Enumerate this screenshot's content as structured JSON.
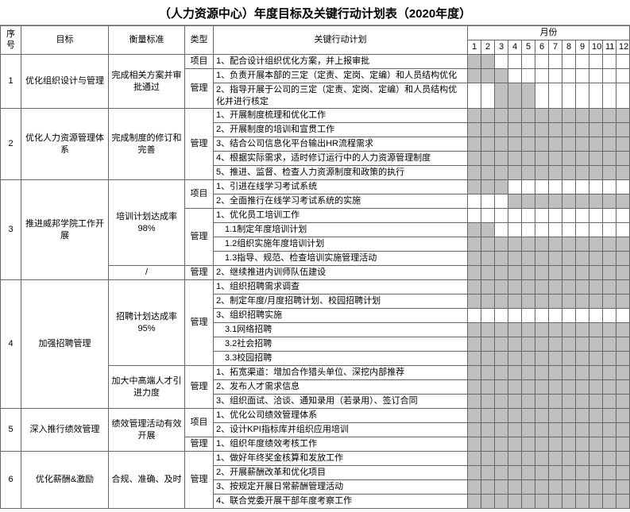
{
  "title": "（人力资源中心）年度目标及关键行动计划表（2020年度）",
  "headers": {
    "seq": "序号",
    "goal": "目标",
    "measure": "衡量标准",
    "type": "类型",
    "plan": "关键行动计划",
    "months": "月份"
  },
  "month_labels": [
    "1",
    "2",
    "3",
    "4",
    "5",
    "6",
    "7",
    "8",
    "9",
    "10",
    "11",
    "12"
  ],
  "goals": [
    {
      "seq": "1",
      "goal": "优化组织设计与管理",
      "measure": "完成相关方案并审批通过",
      "rows": [
        {
          "type": "项目",
          "plan": "1、配合设计组织优化方案，并上报审批",
          "g": [
            1,
            1,
            0,
            0,
            0,
            0,
            0,
            0,
            0,
            0,
            0,
            0
          ]
        },
        {
          "type": "管理",
          "plan": "1、负责开展本部的三定（定责、定岗、定编）和人员结构优化",
          "g": [
            1,
            1,
            1,
            0,
            0,
            0,
            0,
            0,
            0,
            0,
            0,
            0
          ]
        },
        {
          "type": "",
          "plan": "2、指导开展于公司的三定（定责、定岗、定编）和人员结构优化并进行核定",
          "g": [
            0,
            0,
            1,
            1,
            1,
            0,
            0,
            0,
            0,
            0,
            0,
            0
          ]
        }
      ]
    },
    {
      "seq": "2",
      "goal": "优化人力资源管理体系",
      "measure": "完成制度的修订和完善",
      "rows": [
        {
          "type": "管理",
          "plan": "1、开展制度梳理和优化工作",
          "g": [
            1,
            1,
            1,
            1,
            1,
            1,
            1,
            1,
            1,
            1,
            1,
            1
          ]
        },
        {
          "type": "",
          "plan": "2、开展制度的培训和宣贯工作",
          "g": [
            1,
            1,
            1,
            1,
            1,
            1,
            1,
            1,
            1,
            1,
            1,
            1
          ]
        },
        {
          "type": "",
          "plan": "3、结合公司信息化平台输出HR流程需求",
          "g": [
            1,
            1,
            1,
            1,
            1,
            1,
            1,
            1,
            1,
            1,
            1,
            1
          ]
        },
        {
          "type": "",
          "plan": "4、根据实际需求，适时修订运行中的人力资源管理制度",
          "g": [
            1,
            1,
            1,
            1,
            1,
            1,
            1,
            1,
            1,
            1,
            1,
            1
          ]
        },
        {
          "type": "",
          "plan": "5、推进、监督、检查人力资源制度和政策的执行",
          "g": [
            1,
            1,
            1,
            1,
            1,
            1,
            1,
            1,
            1,
            1,
            1,
            1
          ]
        }
      ]
    },
    {
      "seq": "3",
      "goal": "推进威邦学院工作开展",
      "measure": "培训计划达成率98%",
      "measure2": "/",
      "rows": [
        {
          "type": "项目",
          "plan": "1、引进在线学习考试系统",
          "g": [
            1,
            1,
            1,
            0,
            0,
            0,
            0,
            0,
            0,
            0,
            0,
            0
          ]
        },
        {
          "type": "",
          "plan": "2、全面推行在线学习考试系统的实施",
          "g": [
            0,
            0,
            0,
            1,
            1,
            1,
            1,
            1,
            1,
            1,
            1,
            1
          ]
        },
        {
          "type": "管理",
          "plan": "1、优化员工培训工作",
          "g": [
            0,
            0,
            0,
            0,
            0,
            0,
            0,
            0,
            0,
            0,
            0,
            0
          ]
        },
        {
          "type": "",
          "sub": true,
          "plan": "1.1制定年度培训计划",
          "g": [
            1,
            1,
            0,
            0,
            0,
            0,
            0,
            0,
            0,
            0,
            0,
            0
          ]
        },
        {
          "type": "",
          "sub": true,
          "plan": "1.2组织实施年度培训计划",
          "g": [
            1,
            1,
            1,
            1,
            1,
            1,
            1,
            1,
            1,
            1,
            1,
            1
          ]
        },
        {
          "type": "",
          "sub": true,
          "plan": "1.3指导、规范、检查培训实施管理活动",
          "g": [
            1,
            1,
            1,
            1,
            1,
            1,
            1,
            1,
            1,
            1,
            1,
            1
          ]
        },
        {
          "type": "管理",
          "plan": "2、继续推进内训师队伍建设",
          "g": [
            1,
            1,
            1,
            1,
            1,
            1,
            1,
            1,
            1,
            1,
            1,
            1
          ]
        }
      ]
    },
    {
      "seq": "4",
      "goal": "加强招聘管理",
      "measure": "招聘计划达成率95%",
      "measure2": "加大中高端人才引进力度",
      "rows": [
        {
          "type": "管理",
          "plan": "1、组织招聘需求调查",
          "g": [
            1,
            1,
            1,
            1,
            1,
            1,
            1,
            1,
            1,
            1,
            1,
            1
          ]
        },
        {
          "type": "",
          "plan": "2、制定年度/月度招聘计划、校园招聘计划",
          "g": [
            1,
            1,
            1,
            1,
            1,
            1,
            1,
            1,
            1,
            1,
            1,
            1
          ]
        },
        {
          "type": "",
          "plan": "3、组织招聘实施",
          "g": [
            0,
            0,
            0,
            0,
            0,
            0,
            0,
            0,
            0,
            0,
            0,
            0
          ]
        },
        {
          "type": "",
          "sub": true,
          "plan": "3.1网络招聘",
          "g": [
            1,
            1,
            1,
            1,
            1,
            1,
            1,
            1,
            1,
            1,
            1,
            1
          ]
        },
        {
          "type": "",
          "sub": true,
          "plan": "3.2社会招聘",
          "g": [
            1,
            1,
            1,
            1,
            1,
            1,
            1,
            1,
            1,
            1,
            1,
            1
          ]
        },
        {
          "type": "",
          "sub": true,
          "plan": "3.3校园招聘",
          "g": [
            1,
            1,
            1,
            1,
            1,
            1,
            1,
            1,
            1,
            1,
            1,
            1
          ]
        },
        {
          "type": "管理",
          "plan": "1、拓宽渠道：增加合作猎头单位、深挖内部推荐",
          "g": [
            1,
            1,
            1,
            1,
            1,
            1,
            1,
            1,
            1,
            1,
            1,
            1
          ]
        },
        {
          "type": "",
          "plan": "2、发布人才需求信息",
          "g": [
            1,
            1,
            1,
            1,
            1,
            1,
            1,
            1,
            1,
            1,
            1,
            1
          ]
        },
        {
          "type": "",
          "plan": "3、组织面试、洽谈、通知录用（若录用）、签订合同",
          "g": [
            1,
            1,
            1,
            1,
            1,
            1,
            1,
            1,
            1,
            1,
            1,
            1
          ]
        }
      ]
    },
    {
      "seq": "5",
      "goal": "深入推行绩效管理",
      "measure": "绩效管理活动有效开展",
      "rows": [
        {
          "type": "项目",
          "plan": "1、优化公司绩效管理体系",
          "g": [
            1,
            1,
            1,
            1,
            1,
            1,
            1,
            1,
            1,
            1,
            1,
            1
          ]
        },
        {
          "type": "",
          "plan": "2、设计KPI指标库并组织应用培训",
          "g": [
            1,
            1,
            1,
            1,
            1,
            1,
            1,
            1,
            1,
            1,
            1,
            1
          ]
        },
        {
          "type": "管理",
          "plan": "1、组织年度绩效考核工作",
          "g": [
            1,
            1,
            1,
            1,
            1,
            1,
            1,
            1,
            1,
            1,
            1,
            1
          ]
        }
      ]
    },
    {
      "seq": "6",
      "goal": "优化薪酬&激励",
      "measure": "合规、准确、及时",
      "rows": [
        {
          "type": "管理",
          "plan": "1、做好年终奖金核算和发放工作",
          "g": [
            1,
            1,
            1,
            1,
            1,
            1,
            1,
            1,
            1,
            1,
            1,
            1
          ]
        },
        {
          "type": "",
          "plan": "2、开展薪酬改革和优化项目",
          "g": [
            1,
            1,
            1,
            1,
            1,
            1,
            1,
            1,
            1,
            1,
            1,
            1
          ]
        },
        {
          "type": "",
          "plan": "3、按规定开展日常薪酬管理活动",
          "g": [
            1,
            1,
            1,
            1,
            1,
            1,
            1,
            1,
            1,
            1,
            1,
            1
          ]
        },
        {
          "type": "",
          "plan": "4、联合党委开展干部年度考察工作",
          "g": [
            1,
            1,
            1,
            1,
            1,
            1,
            1,
            1,
            1,
            1,
            1,
            1
          ]
        }
      ]
    }
  ],
  "colors": {
    "border": "#666666",
    "gantt_fill": "#bfbfbf",
    "background": "#ffffff"
  },
  "colwidths": {
    "seq": 26,
    "goal": 110,
    "measure": 96,
    "type": 36,
    "plan": 320,
    "month": 17
  }
}
